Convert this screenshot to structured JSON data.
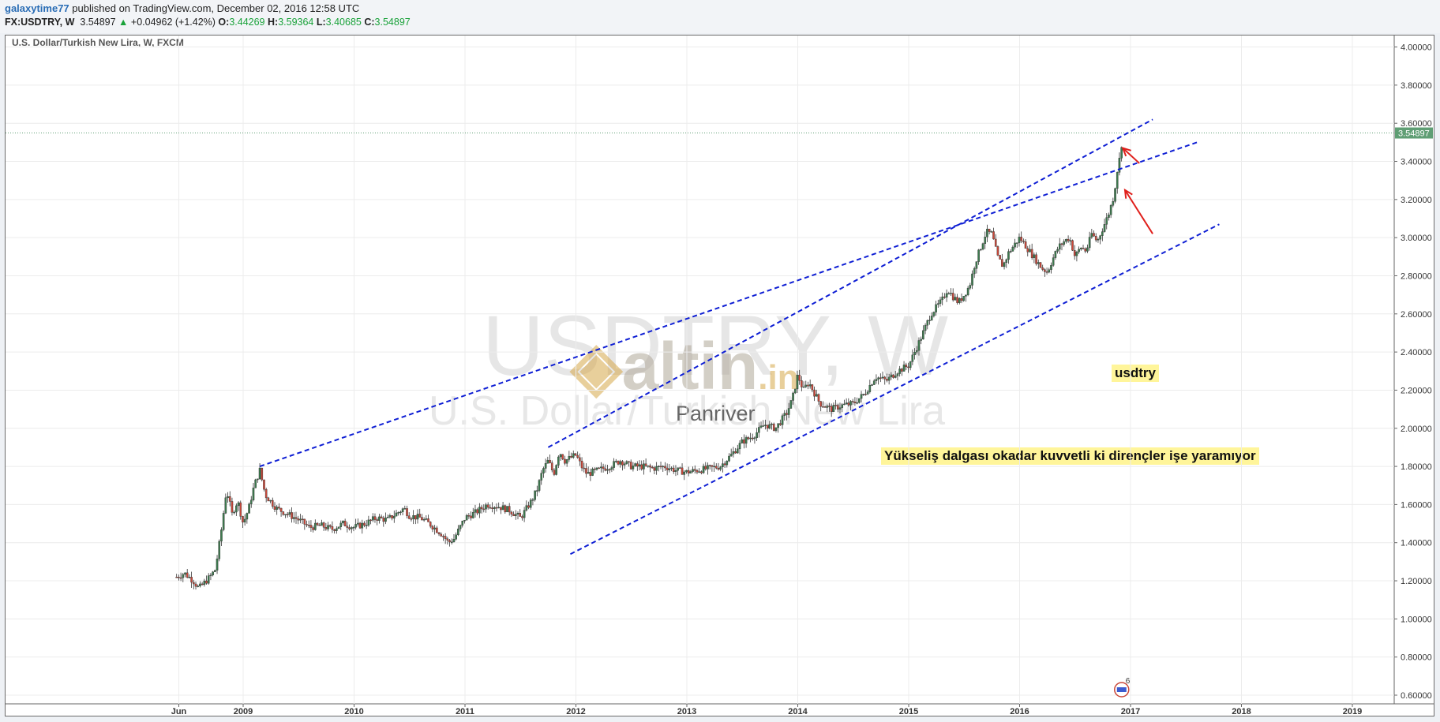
{
  "header": {
    "author": "galaxytime77",
    "published": "published on TradingView.com, December 02, 2016 12:58 UTC",
    "symbol": "FX:USDTRY, W",
    "last": "3.54897",
    "change_arrow": "▲",
    "change": "+0.04962 (+1.42%)",
    "o_label": "O:",
    "o_value": "3.44269",
    "h_label": "H:",
    "h_value": "3.59364",
    "l_label": "L:",
    "l_value": "3.40685",
    "c_label": "C:",
    "c_value": "3.54897"
  },
  "chart_title": "U.S. Dollar/Turkish New Lira, W, FXCM",
  "watermark": {
    "symbol": "USDTRY, W",
    "name": "U.S. Dollar/Turkish New Lira",
    "brand": "altin",
    "brand_suffix": ".in",
    "sub": "Panriver"
  },
  "annotations": {
    "label": "usdtry",
    "comment": "Yükseliş dalgası okadar kuvvetli ki dirençler işe yaramıyor"
  },
  "event_badge_count": "6",
  "price_tag": "3.54897",
  "colors": {
    "up_candle": "#3d7a4e",
    "down_candle": "#c9483a",
    "trendline": "#0f1fd4",
    "arrow": "#e0201c",
    "price_tag_bg": "#5f9e74",
    "highlight": "#fff59a"
  },
  "chart_data": {
    "type": "candlestick",
    "interval": "weekly",
    "title": "U.S. Dollar/Turkish New Lira, W, FXCM",
    "xlabel": "",
    "ylabel": "",
    "ylim": [
      0.55,
      4.05
    ],
    "yticks": [
      "0.60000",
      "0.80000",
      "1.00000",
      "1.20000",
      "1.40000",
      "1.60000",
      "1.80000",
      "2.00000",
      "2.20000",
      "2.40000",
      "2.60000",
      "2.80000",
      "3.00000",
      "3.20000",
      "3.40000",
      "3.60000",
      "3.80000",
      "4.00000"
    ],
    "xticks": [
      {
        "label": "Jun",
        "t": 2008.42
      },
      {
        "label": "2009",
        "t": 2009.0
      },
      {
        "label": "2010",
        "t": 2010.0
      },
      {
        "label": "2011",
        "t": 2011.0
      },
      {
        "label": "2012",
        "t": 2012.0
      },
      {
        "label": "2013",
        "t": 2013.0
      },
      {
        "label": "2014",
        "t": 2014.0
      },
      {
        "label": "2015",
        "t": 2015.0
      },
      {
        "label": "2016",
        "t": 2016.0
      },
      {
        "label": "2017",
        "t": 2017.0
      },
      {
        "label": "2018",
        "t": 2018.0
      },
      {
        "label": "2019",
        "t": 2019.0
      }
    ],
    "close_path": [
      [
        2008.4,
        1.22
      ],
      [
        2008.47,
        1.24
      ],
      [
        2008.55,
        1.2
      ],
      [
        2008.6,
        1.16
      ],
      [
        2008.7,
        1.22
      ],
      [
        2008.75,
        1.26
      ],
      [
        2008.8,
        1.45
      ],
      [
        2008.85,
        1.68
      ],
      [
        2008.9,
        1.55
      ],
      [
        2008.95,
        1.62
      ],
      [
        2009.0,
        1.5
      ],
      [
        2009.05,
        1.58
      ],
      [
        2009.1,
        1.7
      ],
      [
        2009.15,
        1.78
      ],
      [
        2009.2,
        1.65
      ],
      [
        2009.3,
        1.58
      ],
      [
        2009.4,
        1.55
      ],
      [
        2009.5,
        1.52
      ],
      [
        2009.6,
        1.48
      ],
      [
        2009.7,
        1.49
      ],
      [
        2009.8,
        1.47
      ],
      [
        2009.9,
        1.5
      ],
      [
        2010.0,
        1.48
      ],
      [
        2010.1,
        1.5
      ],
      [
        2010.2,
        1.53
      ],
      [
        2010.3,
        1.52
      ],
      [
        2010.4,
        1.56
      ],
      [
        2010.45,
        1.58
      ],
      [
        2010.5,
        1.54
      ],
      [
        2010.6,
        1.53
      ],
      [
        2010.7,
        1.49
      ],
      [
        2010.8,
        1.44
      ],
      [
        2010.85,
        1.4
      ],
      [
        2010.9,
        1.42
      ],
      [
        2011.0,
        1.53
      ],
      [
        2011.1,
        1.56
      ],
      [
        2011.2,
        1.6
      ],
      [
        2011.3,
        1.59
      ],
      [
        2011.4,
        1.57
      ],
      [
        2011.5,
        1.53
      ],
      [
        2011.6,
        1.62
      ],
      [
        2011.65,
        1.68
      ],
      [
        2011.7,
        1.78
      ],
      [
        2011.75,
        1.83
      ],
      [
        2011.8,
        1.76
      ],
      [
        2011.85,
        1.88
      ],
      [
        2011.9,
        1.83
      ],
      [
        2012.0,
        1.86
      ],
      [
        2012.05,
        1.8
      ],
      [
        2012.1,
        1.76
      ],
      [
        2012.2,
        1.78
      ],
      [
        2012.3,
        1.8
      ],
      [
        2012.4,
        1.83
      ],
      [
        2012.5,
        1.8
      ],
      [
        2012.6,
        1.8
      ],
      [
        2012.7,
        1.79
      ],
      [
        2012.8,
        1.8
      ],
      [
        2012.9,
        1.78
      ],
      [
        2013.0,
        1.77
      ],
      [
        2013.1,
        1.78
      ],
      [
        2013.2,
        1.79
      ],
      [
        2013.3,
        1.8
      ],
      [
        2013.4,
        1.86
      ],
      [
        2013.5,
        1.93
      ],
      [
        2013.6,
        1.96
      ],
      [
        2013.7,
        2.02
      ],
      [
        2013.8,
        2.0
      ],
      [
        2013.9,
        2.08
      ],
      [
        2013.95,
        2.15
      ],
      [
        2014.0,
        2.28
      ],
      [
        2014.05,
        2.2
      ],
      [
        2014.1,
        2.24
      ],
      [
        2014.2,
        2.13
      ],
      [
        2014.3,
        2.1
      ],
      [
        2014.4,
        2.12
      ],
      [
        2014.5,
        2.13
      ],
      [
        2014.6,
        2.18
      ],
      [
        2014.7,
        2.27
      ],
      [
        2014.8,
        2.25
      ],
      [
        2014.9,
        2.3
      ],
      [
        2015.0,
        2.33
      ],
      [
        2015.1,
        2.46
      ],
      [
        2015.2,
        2.6
      ],
      [
        2015.3,
        2.67
      ],
      [
        2015.35,
        2.73
      ],
      [
        2015.4,
        2.69
      ],
      [
        2015.45,
        2.66
      ],
      [
        2015.5,
        2.7
      ],
      [
        2015.55,
        2.75
      ],
      [
        2015.6,
        2.87
      ],
      [
        2015.65,
        2.95
      ],
      [
        2015.7,
        3.03
      ],
      [
        2015.75,
        3.02
      ],
      [
        2015.8,
        2.9
      ],
      [
        2015.85,
        2.85
      ],
      [
        2015.9,
        2.92
      ],
      [
        2015.95,
        2.96
      ],
      [
        2016.0,
        3.0
      ],
      [
        2016.05,
        2.96
      ],
      [
        2016.1,
        2.92
      ],
      [
        2016.15,
        2.88
      ],
      [
        2016.2,
        2.84
      ],
      [
        2016.25,
        2.82
      ],
      [
        2016.3,
        2.89
      ],
      [
        2016.35,
        2.95
      ],
      [
        2016.4,
        2.98
      ],
      [
        2016.45,
        3.0
      ],
      [
        2016.5,
        2.9
      ],
      [
        2016.55,
        2.95
      ],
      [
        2016.6,
        2.93
      ],
      [
        2016.65,
        3.02
      ],
      [
        2016.7,
        2.98
      ],
      [
        2016.75,
        3.05
      ],
      [
        2016.8,
        3.12
      ],
      [
        2016.85,
        3.22
      ],
      [
        2016.88,
        3.35
      ],
      [
        2016.91,
        3.44
      ],
      [
        2016.93,
        3.549
      ]
    ],
    "last_close": 3.54897,
    "ohlc_last": {
      "open": 3.44269,
      "high": 3.59364,
      "low": 3.40685,
      "close": 3.54897
    },
    "trendlines": [
      {
        "p1": [
          2009.15,
          1.8
        ],
        "p2": [
          2017.6,
          3.5
        ]
      },
      {
        "p1": [
          2011.75,
          1.9
        ],
        "p2": [
          2017.2,
          3.62
        ]
      },
      {
        "p1": [
          2011.95,
          1.34
        ],
        "p2": [
          2017.8,
          3.07
        ]
      }
    ],
    "arrows": [
      {
        "from": [
          2017.08,
          3.39
        ],
        "to": [
          2016.93,
          3.47
        ]
      },
      {
        "from": [
          2017.2,
          3.02
        ],
        "to": [
          2016.95,
          3.25
        ]
      }
    ],
    "grid": true,
    "legend": "none"
  }
}
